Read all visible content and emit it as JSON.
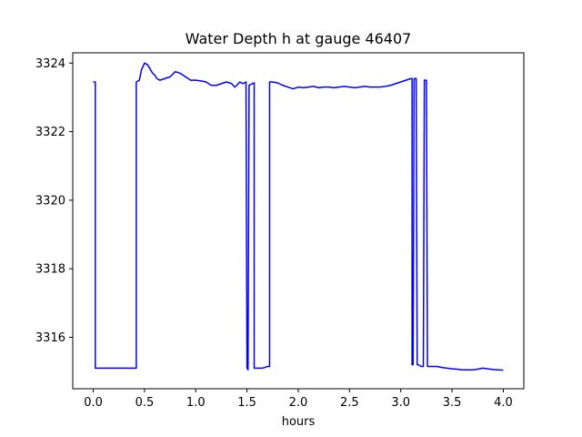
{
  "chart_data": {
    "type": "line",
    "title": "Water Depth h at gauge 46407",
    "xlabel": "hours",
    "ylabel": "",
    "xlim": [
      -0.2,
      4.2
    ],
    "ylim": [
      3314.5,
      3324.3
    ],
    "xticks": [
      0.0,
      0.5,
      1.0,
      1.5,
      2.0,
      2.5,
      3.0,
      3.5,
      4.0
    ],
    "xtick_labels": [
      "0.0",
      "0.5",
      "1.0",
      "1.5",
      "2.0",
      "2.5",
      "3.0",
      "3.5",
      "4.0"
    ],
    "yticks": [
      3316,
      3318,
      3320,
      3322,
      3324
    ],
    "ytick_labels": [
      "3316",
      "3318",
      "3320",
      "3322",
      "3324"
    ],
    "grid": false,
    "series": [
      {
        "color": "#0000ff",
        "x": [
          0.0,
          0.02,
          0.02,
          0.1,
          0.2,
          0.3,
          0.42,
          0.42,
          0.45,
          0.47,
          0.5,
          0.53,
          0.55,
          0.58,
          0.6,
          0.62,
          0.65,
          0.7,
          0.75,
          0.8,
          0.83,
          0.85,
          0.9,
          0.95,
          1.0,
          1.05,
          1.1,
          1.15,
          1.2,
          1.25,
          1.3,
          1.35,
          1.38,
          1.4,
          1.43,
          1.46,
          1.49,
          1.5,
          1.51,
          1.52,
          1.55,
          1.57,
          1.57,
          1.6,
          1.65,
          1.7,
          1.72,
          1.72,
          1.75,
          1.8,
          1.85,
          1.9,
          1.95,
          2.0,
          2.05,
          2.1,
          2.15,
          2.2,
          2.25,
          2.3,
          2.35,
          2.4,
          2.45,
          2.5,
          2.55,
          2.6,
          2.65,
          2.7,
          2.75,
          2.8,
          2.85,
          2.9,
          2.95,
          3.0,
          3.05,
          3.1,
          3.11,
          3.11,
          3.12,
          3.13,
          3.14,
          3.15,
          3.16,
          3.17,
          3.2,
          3.22,
          3.23,
          3.24,
          3.25,
          3.26,
          3.3,
          3.35,
          3.4,
          3.45,
          3.5,
          3.55,
          3.6,
          3.65,
          3.7,
          3.75,
          3.8,
          3.85,
          3.9,
          3.95,
          4.0
        ],
        "y": [
          3323.45,
          3323.45,
          3315.1,
          3315.1,
          3315.1,
          3315.1,
          3315.1,
          3323.45,
          3323.5,
          3323.8,
          3324.0,
          3323.95,
          3323.85,
          3323.7,
          3323.65,
          3323.55,
          3323.5,
          3323.55,
          3323.6,
          3323.75,
          3323.72,
          3323.7,
          3323.6,
          3323.5,
          3323.5,
          3323.48,
          3323.45,
          3323.35,
          3323.35,
          3323.4,
          3323.45,
          3323.4,
          3323.3,
          3323.35,
          3323.45,
          3323.4,
          3323.45,
          3315.1,
          3315.05,
          3323.35,
          3323.4,
          3323.42,
          3315.1,
          3315.1,
          3315.1,
          3315.15,
          3315.15,
          3323.45,
          3323.45,
          3323.42,
          3323.35,
          3323.3,
          3323.25,
          3323.3,
          3323.28,
          3323.3,
          3323.32,
          3323.28,
          3323.3,
          3323.3,
          3323.28,
          3323.3,
          3323.32,
          3323.3,
          3323.28,
          3323.3,
          3323.32,
          3323.3,
          3323.3,
          3323.3,
          3323.32,
          3323.35,
          3323.4,
          3323.45,
          3323.5,
          3323.55,
          3323.55,
          3315.2,
          3315.2,
          3323.55,
          3323.55,
          3323.55,
          3315.2,
          3315.2,
          3315.15,
          3315.15,
          3323.5,
          3323.5,
          3323.5,
          3315.15,
          3315.15,
          3315.15,
          3315.12,
          3315.1,
          3315.08,
          3315.07,
          3315.05,
          3315.05,
          3315.05,
          3315.07,
          3315.1,
          3315.08,
          3315.06,
          3315.05,
          3315.04
        ]
      }
    ]
  }
}
